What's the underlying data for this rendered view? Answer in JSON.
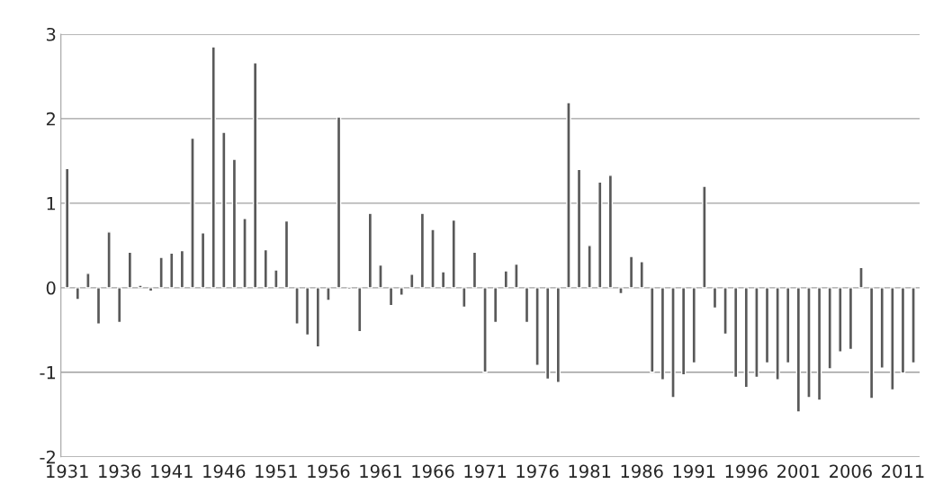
{
  "chart_data": {
    "type": "bar",
    "categories": [
      "1931",
      null,
      null,
      null,
      null,
      "1936",
      null,
      null,
      null,
      null,
      "1941",
      null,
      null,
      null,
      null,
      "1946",
      null,
      null,
      null,
      null,
      "1951",
      null,
      null,
      null,
      null,
      "1956",
      null,
      null,
      null,
      null,
      "1961",
      null,
      null,
      null,
      null,
      "1966",
      null,
      null,
      null,
      null,
      "1971",
      null,
      null,
      null,
      null,
      "1976",
      null,
      null,
      null,
      null,
      "1981",
      null,
      null,
      null,
      null,
      "1986",
      null,
      null,
      null,
      null,
      "1991",
      null,
      null,
      null,
      null,
      "1996",
      null,
      null,
      null,
      null,
      "2001",
      null,
      null,
      null,
      null,
      "2006",
      null,
      null,
      null,
      null,
      "2011",
      null
    ],
    "values": [
      1.41,
      -0.14,
      0.17,
      -0.43,
      0.66,
      -0.41,
      0.42,
      0.03,
      -0.04,
      0.36,
      0.41,
      0.44,
      1.77,
      0.65,
      2.85,
      1.84,
      1.52,
      0.82,
      2.66,
      0.45,
      0.21,
      0.79,
      -0.43,
      -0.56,
      -0.7,
      -0.15,
      2.02,
      -0.02,
      -0.52,
      0.88,
      0.27,
      -0.21,
      -0.09,
      0.16,
      0.88,
      0.69,
      0.19,
      0.8,
      -0.23,
      0.42,
      -1.0,
      -0.41,
      0.2,
      0.28,
      -0.41,
      -0.92,
      -1.08,
      -1.12,
      2.19,
      1.4,
      0.5,
      1.25,
      1.33,
      -0.07,
      0.37,
      0.31,
      -1.0,
      -1.09,
      -1.3,
      -1.03,
      -0.89,
      1.2,
      -0.24,
      -0.55,
      -1.06,
      -1.18,
      -1.06,
      -0.89,
      -1.09,
      -0.89,
      -1.47,
      -1.3,
      -1.33,
      -0.96,
      -0.76,
      -0.73,
      0.24,
      -1.31,
      -0.95,
      -1.21,
      -1.01,
      -0.89
    ],
    "color": "#595959",
    "ylim": [
      -2,
      3
    ],
    "yticks": [
      -2,
      -1,
      0,
      1,
      2,
      3
    ],
    "grid": "y"
  }
}
